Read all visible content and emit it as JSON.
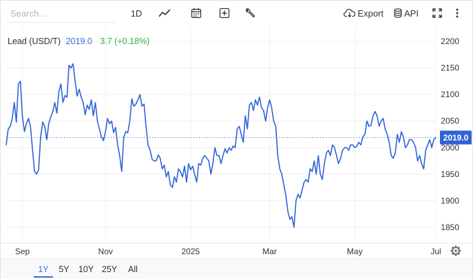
{
  "toolbar": {
    "search_placeholder": "Search...",
    "interval_label": "1D",
    "export_label": "Export",
    "api_label": "API"
  },
  "legend": {
    "name": "Lead (USD/T)",
    "price": "2019.0",
    "change": "3.7 (+0.18%)"
  },
  "price_tag": "2019.0",
  "range_buttons": [
    "1Y",
    "5Y",
    "10Y",
    "25Y",
    "All"
  ],
  "active_range": "1Y",
  "colors": {
    "line": "#2f63d6",
    "accent": "#3a6fd8",
    "positive": "#2fb344"
  },
  "chart_data": {
    "type": "line",
    "title": "Lead (USD/T)",
    "xlabel": "",
    "ylabel": "",
    "ylim": [
      1820,
      2230
    ],
    "y_ticks": [
      1850,
      1900,
      1950,
      2000,
      2050,
      2100,
      2150,
      2200
    ],
    "x_tick_labels": [
      "Sep",
      "Nov",
      "2025",
      "Mar",
      "May",
      "Jul"
    ],
    "x_tick_index": [
      8,
      49,
      91,
      130,
      172,
      212
    ],
    "grid": true,
    "last_value": 2019.0,
    "series": [
      {
        "values": [
          2005,
          2035,
          2040,
          2055,
          2085,
          2048,
          2120,
          2125,
          2060,
          2030,
          2045,
          2055,
          2040,
          1995,
          1955,
          1950,
          1958,
          2020,
          2048,
          2040,
          2015,
          2045,
          2058,
          2068,
          2085,
          2065,
          2105,
          2120,
          2085,
          2098,
          2095,
          2155,
          2150,
          2158,
          2125,
          2097,
          2110,
          2095,
          2085,
          2062,
          2080,
          2072,
          2090,
          2060,
          2085,
          2050,
          2035,
          2020,
          2013,
          2030,
          2055,
          2045,
          2050,
          2028,
          2038,
          2005,
          1985,
          1955,
          2020,
          2030,
          2028,
          2050,
          2092,
          2078,
          2082,
          2090,
          2100,
          2078,
          2082,
          2040,
          2005,
          1995,
          1978,
          1975,
          1975,
          1986,
          1980,
          1960,
          1967,
          1945,
          1955,
          1930,
          1925,
          1945,
          1935,
          1960,
          1955,
          1945,
          1965,
          1935,
          1970,
          1958,
          1965,
          1950,
          1935,
          1970,
          1967,
          1980,
          1985,
          1980,
          1975,
          1950,
          1970,
          2000,
          1985,
          1985,
          1970,
          1985,
          1998,
          1990,
          2000,
          1995,
          2003,
          2000,
          2035,
          2040,
          2025,
          2010,
          2060,
          2035,
          2080,
          2085,
          2070,
          2090,
          2080,
          2095,
          2075,
          2070,
          2050,
          2075,
          2090,
          2075,
          2050,
          2040,
          1985,
          1960,
          1950,
          1930,
          1910,
          1880,
          1865,
          1870,
          1850,
          1900,
          1912,
          1905,
          1920,
          1935,
          1940,
          1935,
          1960,
          1955,
          1975,
          1950,
          1985,
          1950,
          1940,
          1970,
          1990,
          1995,
          1985,
          2005,
          2000,
          1985,
          1970,
          1980,
          1995,
          2000,
          2000,
          1995,
          2005,
          2005,
          2000,
          2003,
          2010,
          2005,
          2020,
          2025,
          2050,
          2040,
          2042,
          2060,
          2068,
          2060,
          2040,
          2050,
          2055,
          2035,
          2025,
          2010,
          1985,
          1980,
          1990,
          2025,
          2010,
          2030,
          2020,
          2000,
          2005,
          2015,
          2015,
          2010,
          2000,
          1975,
          1985,
          1970,
          1960,
          1995,
          2005,
          2015,
          2000,
          2015,
          2019
        ]
      }
    ]
  }
}
